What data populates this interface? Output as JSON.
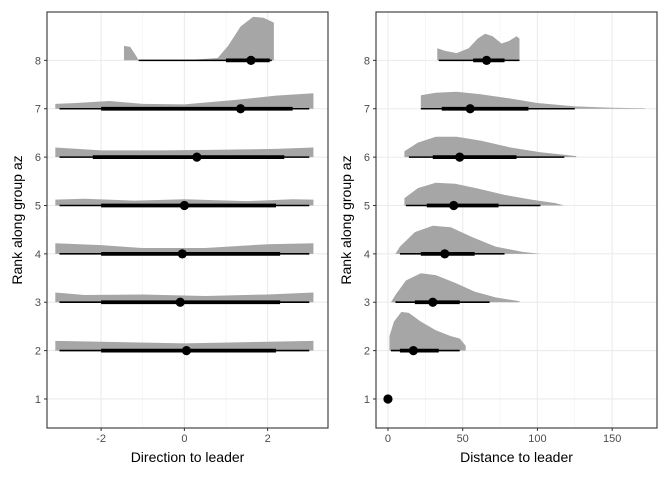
{
  "chart_data": [
    {
      "type": "halfeye",
      "xlabel": "Direction to leader",
      "ylabel": "Rank along group az",
      "xlim": [
        -3.3,
        3.45
      ],
      "ylim": [
        0.4,
        9.0
      ],
      "x_ticks": [
        -2,
        0,
        2
      ],
      "x_tick_labels": [
        "-2",
        "0",
        "2"
      ],
      "y_ticks": [
        1,
        2,
        3,
        4,
        5,
        6,
        7,
        8
      ],
      "y_tick_labels": [
        "1",
        "2",
        "3",
        "4",
        "5",
        "6",
        "7",
        "8"
      ],
      "grid": true,
      "rows": [
        {
          "rank": 2,
          "point": 0.05,
          "interval_66": [
            -2.0,
            2.2
          ],
          "interval_95": [
            -3.0,
            3.0
          ],
          "density": [
            [
              -3.1,
              0.0
            ],
            [
              -3.1,
              0.2
            ],
            [
              0.0,
              0.15
            ],
            [
              3.1,
              0.2
            ],
            [
              3.1,
              0.0
            ]
          ]
        },
        {
          "rank": 3,
          "point": -0.1,
          "interval_66": [
            -2.0,
            2.3
          ],
          "interval_95": [
            -3.0,
            3.0
          ],
          "density": [
            [
              -3.1,
              0.0
            ],
            [
              -3.1,
              0.2
            ],
            [
              -2.4,
              0.15
            ],
            [
              -1.0,
              0.16
            ],
            [
              0.5,
              0.13
            ],
            [
              2.0,
              0.16
            ],
            [
              3.1,
              0.2
            ],
            [
              3.1,
              0.0
            ]
          ]
        },
        {
          "rank": 4,
          "point": -0.05,
          "interval_66": [
            -2.0,
            2.3
          ],
          "interval_95": [
            -3.0,
            3.0
          ],
          "density": [
            [
              -3.1,
              0.0
            ],
            [
              -3.1,
              0.22
            ],
            [
              -2.0,
              0.18
            ],
            [
              -1.0,
              0.12
            ],
            [
              0.5,
              0.12
            ],
            [
              2.0,
              0.2
            ],
            [
              3.1,
              0.22
            ],
            [
              3.1,
              0.0
            ]
          ]
        },
        {
          "rank": 5,
          "point": 0.0,
          "interval_66": [
            -2.0,
            2.2
          ],
          "interval_95": [
            -3.0,
            3.0
          ],
          "density": [
            [
              -3.1,
              0.0
            ],
            [
              -3.1,
              0.12
            ],
            [
              -2.4,
              0.14
            ],
            [
              -1.2,
              0.1
            ],
            [
              0.0,
              0.13
            ],
            [
              1.5,
              0.09
            ],
            [
              2.6,
              0.13
            ],
            [
              3.1,
              0.12
            ],
            [
              3.1,
              0.0
            ]
          ]
        },
        {
          "rank": 6,
          "point": 0.3,
          "interval_66": [
            -2.2,
            2.4
          ],
          "interval_95": [
            -3.0,
            3.0
          ],
          "density": [
            [
              -3.1,
              0.0
            ],
            [
              -3.1,
              0.2
            ],
            [
              -2.0,
              0.14
            ],
            [
              -0.6,
              0.14
            ],
            [
              0.6,
              0.15
            ],
            [
              2.2,
              0.17
            ],
            [
              3.1,
              0.2
            ],
            [
              3.1,
              0.0
            ]
          ]
        },
        {
          "rank": 7,
          "point": 1.35,
          "interval_66": [
            -2.0,
            2.6
          ],
          "interval_95": [
            -3.0,
            3.0
          ],
          "density": [
            [
              -3.1,
              0.0
            ],
            [
              -3.1,
              0.1
            ],
            [
              -2.6,
              0.12
            ],
            [
              -1.8,
              0.16
            ],
            [
              -1.0,
              0.1
            ],
            [
              0.0,
              0.09
            ],
            [
              1.2,
              0.18
            ],
            [
              2.2,
              0.27
            ],
            [
              3.1,
              0.32
            ],
            [
              3.1,
              0.0
            ]
          ]
        },
        {
          "rank": 8,
          "point": 1.6,
          "interval_66": [
            1.0,
            2.05
          ],
          "interval_95": [
            -1.1,
            2.1
          ],
          "density": [
            [
              -1.45,
              0.0
            ],
            [
              -1.45,
              0.3
            ],
            [
              -1.3,
              0.28
            ],
            [
              -1.15,
              0.08
            ],
            [
              -1.1,
              0.0
            ],
            [
              -0.6,
              0.0
            ],
            [
              0.0,
              0.0
            ],
            [
              0.8,
              0.05
            ],
            [
              1.05,
              0.3
            ],
            [
              1.35,
              0.7
            ],
            [
              1.65,
              0.9
            ],
            [
              1.9,
              0.88
            ],
            [
              2.15,
              0.78
            ],
            [
              2.15,
              0.0
            ]
          ]
        }
      ]
    },
    {
      "type": "halfeye",
      "xlabel": "Distance to leader",
      "ylabel": "Rank along group az",
      "xlim": [
        -8,
        180
      ],
      "ylim": [
        0.4,
        9.0
      ],
      "x_ticks": [
        0,
        50,
        100,
        150
      ],
      "x_tick_labels": [
        "0",
        "50",
        "100",
        "150"
      ],
      "y_ticks": [
        1,
        2,
        3,
        4,
        5,
        6,
        7,
        8
      ],
      "y_tick_labels": [
        "1",
        "2",
        "3",
        "4",
        "5",
        "6",
        "7",
        "8"
      ],
      "grid": true,
      "rows": [
        {
          "rank": 1,
          "point": 0.0,
          "interval_66": [
            0,
            0
          ],
          "interval_95": [
            0,
            0
          ],
          "density": []
        },
        {
          "rank": 2,
          "point": 17,
          "interval_66": [
            8,
            34
          ],
          "interval_95": [
            2,
            48
          ],
          "density": [
            [
              1,
              0.0
            ],
            [
              1,
              0.3
            ],
            [
              4,
              0.6
            ],
            [
              9,
              0.8
            ],
            [
              14,
              0.78
            ],
            [
              22,
              0.6
            ],
            [
              32,
              0.42
            ],
            [
              42,
              0.3
            ],
            [
              48,
              0.25
            ],
            [
              52,
              0.1
            ],
            [
              52,
              0.0
            ]
          ]
        },
        {
          "rank": 3,
          "point": 30,
          "interval_66": [
            18,
            48
          ],
          "interval_95": [
            5,
            68
          ],
          "density": [
            [
              2,
              0.0
            ],
            [
              5,
              0.15
            ],
            [
              12,
              0.45
            ],
            [
              22,
              0.6
            ],
            [
              32,
              0.56
            ],
            [
              45,
              0.4
            ],
            [
              58,
              0.22
            ],
            [
              72,
              0.1
            ],
            [
              88,
              0.02
            ],
            [
              88,
              0.0
            ]
          ]
        },
        {
          "rank": 4,
          "point": 38,
          "interval_66": [
            22,
            58
          ],
          "interval_95": [
            8,
            78
          ],
          "density": [
            [
              5,
              0.0
            ],
            [
              8,
              0.15
            ],
            [
              18,
              0.45
            ],
            [
              30,
              0.58
            ],
            [
              42,
              0.55
            ],
            [
              56,
              0.35
            ],
            [
              72,
              0.15
            ],
            [
              90,
              0.04
            ],
            [
              102,
              0.0
            ]
          ]
        },
        {
          "rank": 5,
          "point": 44,
          "interval_66": [
            26,
            74
          ],
          "interval_95": [
            12,
            102
          ],
          "density": [
            [
              11,
              0.0
            ],
            [
              11,
              0.15
            ],
            [
              20,
              0.36
            ],
            [
              32,
              0.47
            ],
            [
              45,
              0.45
            ],
            [
              60,
              0.35
            ],
            [
              78,
              0.22
            ],
            [
              96,
              0.12
            ],
            [
              112,
              0.05
            ],
            [
              118,
              0.0
            ]
          ]
        },
        {
          "rank": 6,
          "point": 48,
          "interval_66": [
            30,
            86
          ],
          "interval_95": [
            14,
            118
          ],
          "density": [
            [
              11,
              0.0
            ],
            [
              11,
              0.12
            ],
            [
              20,
              0.3
            ],
            [
              32,
              0.42
            ],
            [
              46,
              0.42
            ],
            [
              62,
              0.34
            ],
            [
              82,
              0.2
            ],
            [
              102,
              0.1
            ],
            [
              118,
              0.05
            ],
            [
              126,
              0.02
            ],
            [
              126,
              0.0
            ]
          ]
        },
        {
          "rank": 7,
          "point": 55,
          "interval_66": [
            36,
            94
          ],
          "interval_95": [
            22,
            125
          ],
          "density": [
            [
              22,
              0.0
            ],
            [
              22,
              0.28
            ],
            [
              32,
              0.33
            ],
            [
              46,
              0.35
            ],
            [
              62,
              0.3
            ],
            [
              80,
              0.22
            ],
            [
              100,
              0.12
            ],
            [
              125,
              0.05
            ],
            [
              150,
              0.02
            ],
            [
              172,
              0.01
            ],
            [
              172,
              0.0
            ]
          ]
        },
        {
          "rank": 8,
          "point": 66,
          "interval_66": [
            57,
            78
          ],
          "interval_95": [
            34,
            88
          ],
          "density": [
            [
              33,
              0.0
            ],
            [
              33,
              0.25
            ],
            [
              38,
              0.2
            ],
            [
              46,
              0.15
            ],
            [
              54,
              0.25
            ],
            [
              60,
              0.45
            ],
            [
              65,
              0.55
            ],
            [
              70,
              0.5
            ],
            [
              76,
              0.35
            ],
            [
              81,
              0.4
            ],
            [
              86,
              0.5
            ],
            [
              88,
              0.45
            ],
            [
              88,
              0.0
            ]
          ]
        }
      ]
    }
  ]
}
